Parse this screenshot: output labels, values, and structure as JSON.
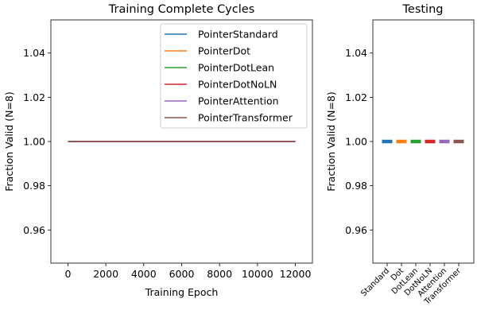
{
  "chart_data": [
    {
      "type": "line",
      "title": "Training Complete Cycles",
      "xlabel": "Training Epoch",
      "ylabel": "Fraction Valid (N=8)",
      "xlim": [
        -900,
        12900
      ],
      "ylim": [
        0.945,
        1.055
      ],
      "xticks": [
        0,
        2000,
        4000,
        6000,
        8000,
        10000,
        12000
      ],
      "xtick_labels": [
        "0",
        "2000",
        "4000",
        "6000",
        "8000",
        "10000",
        "12000"
      ],
      "yticks": [
        0.96,
        0.98,
        1.0,
        1.02,
        1.04
      ],
      "ytick_labels": [
        "0.96",
        "0.98",
        "1.00",
        "1.02",
        "1.04"
      ],
      "grid": false,
      "legend_position": "upper-right",
      "series": [
        {
          "name": "PointerStandard",
          "color": "#1f77b4",
          "x": [
            0,
            12000
          ],
          "y": [
            1.0,
            1.0
          ]
        },
        {
          "name": "PointerDot",
          "color": "#ff7f0e",
          "x": [
            0,
            12000
          ],
          "y": [
            1.0,
            1.0
          ]
        },
        {
          "name": "PointerDotLean",
          "color": "#2ca02c",
          "x": [
            0,
            12000
          ],
          "y": [
            1.0,
            1.0
          ]
        },
        {
          "name": "PointerDotNoLN",
          "color": "#d62728",
          "x": [
            0,
            12000
          ],
          "y": [
            1.0,
            1.0
          ]
        },
        {
          "name": "PointerAttention",
          "color": "#9467bd",
          "x": [
            0,
            12000
          ],
          "y": [
            1.0,
            1.0
          ]
        },
        {
          "name": "PointerTransformer",
          "color": "#8c564b",
          "x": [
            0,
            12000
          ],
          "y": [
            1.0,
            1.0
          ]
        }
      ]
    },
    {
      "type": "bar",
      "title": "Testing",
      "ylabel": "Fraction Valid (N=8)",
      "ylim": [
        0.945,
        1.055
      ],
      "yticks": [
        0.96,
        0.98,
        1.0,
        1.02,
        1.04
      ],
      "ytick_labels": [
        "0.96",
        "0.98",
        "1.00",
        "1.02",
        "1.04"
      ],
      "grid": false,
      "categories": [
        "Standard",
        "Dot",
        "DotLean",
        "DotNoLN",
        "Attention",
        "Transformer"
      ],
      "values": [
        1.0,
        1.0,
        1.0,
        1.0,
        1.0,
        1.0
      ],
      "colors": [
        "#1f77b4",
        "#ff7f0e",
        "#2ca02c",
        "#d62728",
        "#9467bd",
        "#8c564b"
      ]
    }
  ]
}
